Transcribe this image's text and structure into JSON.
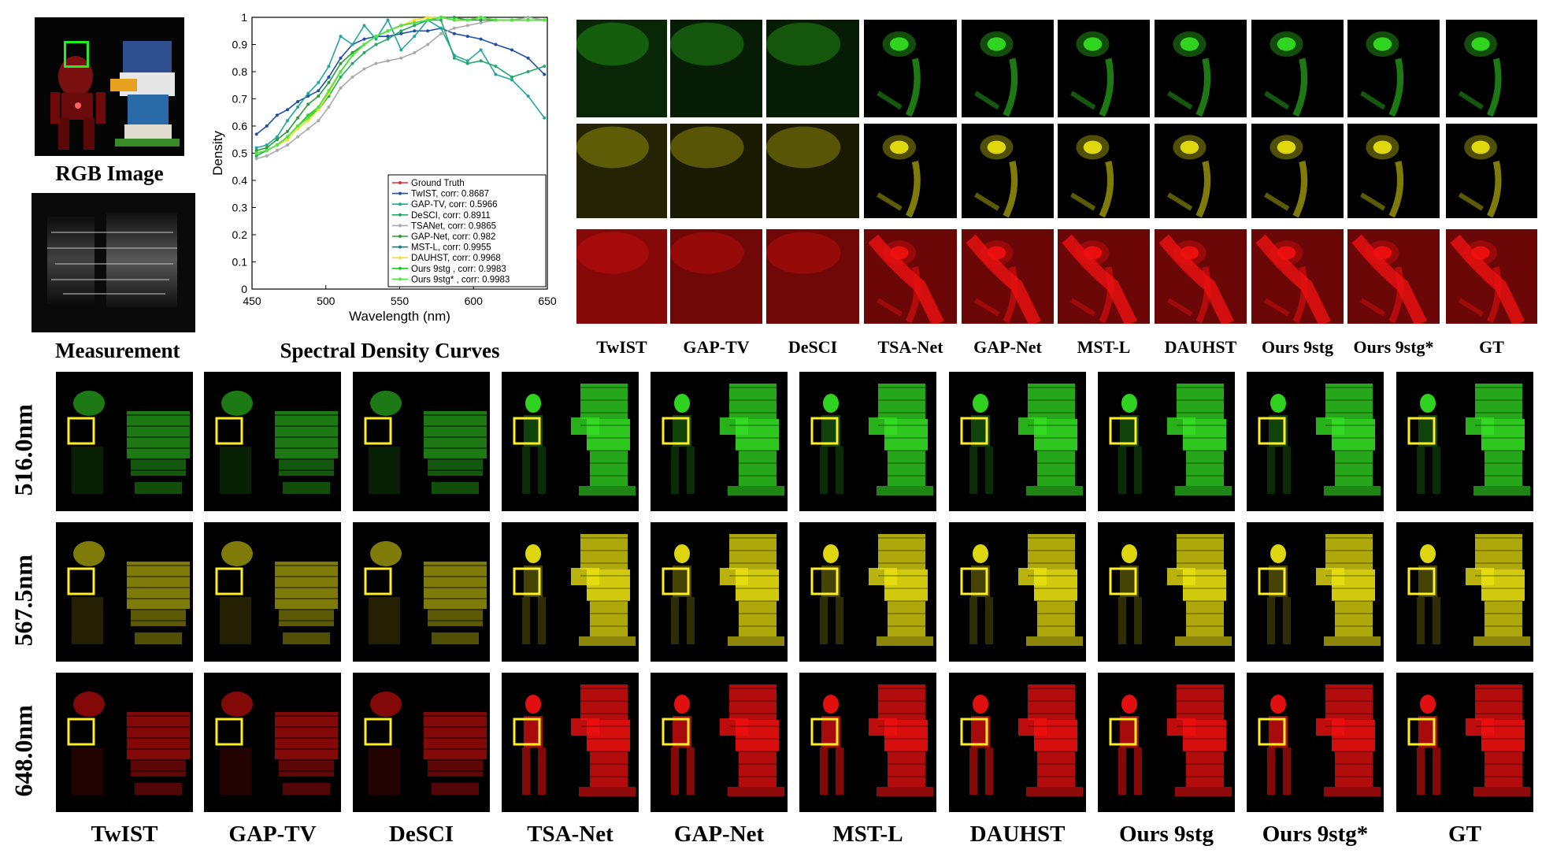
{
  "rgb_caption": "RGB Image",
  "measurement_caption": "Measurement",
  "curves_caption": "Spectral Density Curves",
  "methods": [
    "TwIST",
    "GAP-TV",
    "DeSCI",
    "TSA-Net",
    "GAP-Net",
    "MST-L",
    "DAUHST",
    "Ours 9stg",
    "Ours 9stg*",
    "GT"
  ],
  "bottom_methods": [
    "TwIST",
    "GAP-TV",
    "DeSCI",
    "TSA-Net",
    "GAP-Net",
    "MST-L",
    "DAUHST",
    "Ours 9stg",
    "Ours 9stg*",
    "GT"
  ],
  "wavelengths": [
    "516.0nm",
    "567.5nm",
    "648.0nm"
  ],
  "band_colors": [
    "#33dd22",
    "#e8e010",
    "#ee1010"
  ],
  "chart_data": {
    "type": "line",
    "title": "",
    "xlabel": "Wavelength (nm)",
    "ylabel": "Density",
    "xlim": [
      450,
      650
    ],
    "ylim": [
      0,
      1
    ],
    "xticks": [
      450,
      500,
      550,
      600,
      650
    ],
    "yticks": [
      0,
      0.1,
      0.2,
      0.3,
      0.4,
      0.5,
      0.6,
      0.7,
      0.8,
      0.9,
      1
    ],
    "legend_position": "bottom-right",
    "x": [
      453,
      460,
      467,
      474,
      481,
      488,
      495,
      502,
      510,
      518,
      526,
      534,
      542,
      551,
      560,
      569,
      578,
      587,
      596,
      605,
      615,
      626,
      637,
      648
    ],
    "series": [
      {
        "name": "Ground Truth",
        "color": "#e8282a",
        "values": [
          0.5,
          0.51,
          0.53,
          0.56,
          0.6,
          0.63,
          0.67,
          0.73,
          0.8,
          0.86,
          0.9,
          0.93,
          0.95,
          0.97,
          0.98,
          0.99,
          1.0,
          0.99,
          0.99,
          1.0,
          0.99,
          0.99,
          0.99,
          0.99
        ]
      },
      {
        "name": "TwIST, corr: 0.8687",
        "color": "#1f4fa8",
        "values": [
          0.57,
          0.6,
          0.64,
          0.66,
          0.69,
          0.71,
          0.73,
          0.78,
          0.85,
          0.9,
          0.92,
          0.93,
          0.93,
          0.94,
          0.95,
          0.95,
          0.96,
          0.94,
          0.93,
          0.92,
          0.9,
          0.88,
          0.85,
          0.79
        ]
      },
      {
        "name": "GAP-TV, corr: 0.5966",
        "color": "#20a89a",
        "values": [
          0.52,
          0.53,
          0.56,
          0.62,
          0.67,
          0.72,
          0.76,
          0.82,
          0.93,
          0.9,
          0.97,
          0.92,
          0.99,
          0.88,
          0.93,
          0.99,
          0.96,
          0.86,
          0.84,
          0.88,
          0.79,
          0.77,
          0.71,
          0.63
        ]
      },
      {
        "name": "DeSCI, corr: 0.8911",
        "color": "#23a86a",
        "values": [
          0.49,
          0.51,
          0.53,
          0.56,
          0.6,
          0.63,
          0.66,
          0.71,
          0.78,
          0.83,
          0.87,
          0.9,
          0.92,
          0.95,
          0.97,
          0.99,
          0.99,
          0.85,
          0.83,
          0.84,
          0.82,
          0.78,
          0.8,
          0.82
        ]
      },
      {
        "name": "TSANet, corr: 0.9865",
        "color": "#aaaaaa",
        "values": [
          0.48,
          0.49,
          0.51,
          0.53,
          0.56,
          0.59,
          0.62,
          0.67,
          0.74,
          0.78,
          0.81,
          0.83,
          0.84,
          0.85,
          0.87,
          0.9,
          0.94,
          0.96,
          0.97,
          0.98,
          0.99,
          0.99,
          1.0,
          0.99
        ]
      },
      {
        "name": "GAP-Net, corr: 0.982",
        "color": "#2c9c36",
        "values": [
          0.51,
          0.52,
          0.55,
          0.58,
          0.63,
          0.68,
          0.71,
          0.76,
          0.83,
          0.87,
          0.9,
          0.93,
          0.95,
          0.97,
          0.98,
          0.99,
          1.0,
          1.0,
          0.99,
          0.99,
          0.99,
          0.99,
          0.99,
          0.99
        ]
      },
      {
        "name": "MST-L, corr: 0.9955",
        "color": "#14807a",
        "values": [
          0.5,
          0.51,
          0.53,
          0.56,
          0.6,
          0.63,
          0.67,
          0.73,
          0.8,
          0.86,
          0.9,
          0.93,
          0.95,
          0.97,
          0.98,
          0.99,
          1.0,
          0.99,
          0.99,
          1.0,
          0.99,
          0.99,
          0.99,
          0.99
        ]
      },
      {
        "name": "DAUHST, corr: 0.9968",
        "color": "#f0e030",
        "values": [
          0.5,
          0.51,
          0.53,
          0.55,
          0.59,
          0.62,
          0.66,
          0.72,
          0.8,
          0.86,
          0.9,
          0.93,
          0.95,
          0.97,
          0.99,
          1.0,
          1.0,
          0.99,
          0.99,
          1.0,
          0.99,
          0.99,
          0.99,
          0.99
        ]
      },
      {
        "name": "Ours 9stg , corr: 0.9983",
        "color": "#1ec81e",
        "values": [
          0.5,
          0.51,
          0.53,
          0.56,
          0.6,
          0.64,
          0.67,
          0.73,
          0.8,
          0.86,
          0.9,
          0.93,
          0.95,
          0.97,
          0.98,
          0.99,
          1.0,
          0.99,
          0.99,
          1.0,
          0.99,
          0.99,
          0.99,
          0.99
        ]
      },
      {
        "name": "Ours 9stg* , corr: 0.9983",
        "color": "#4fe83a",
        "values": [
          0.5,
          0.51,
          0.53,
          0.56,
          0.6,
          0.63,
          0.67,
          0.73,
          0.8,
          0.86,
          0.9,
          0.93,
          0.95,
          0.97,
          0.98,
          0.99,
          1.0,
          0.99,
          0.99,
          1.0,
          0.99,
          0.99,
          0.99,
          0.99
        ]
      }
    ]
  }
}
